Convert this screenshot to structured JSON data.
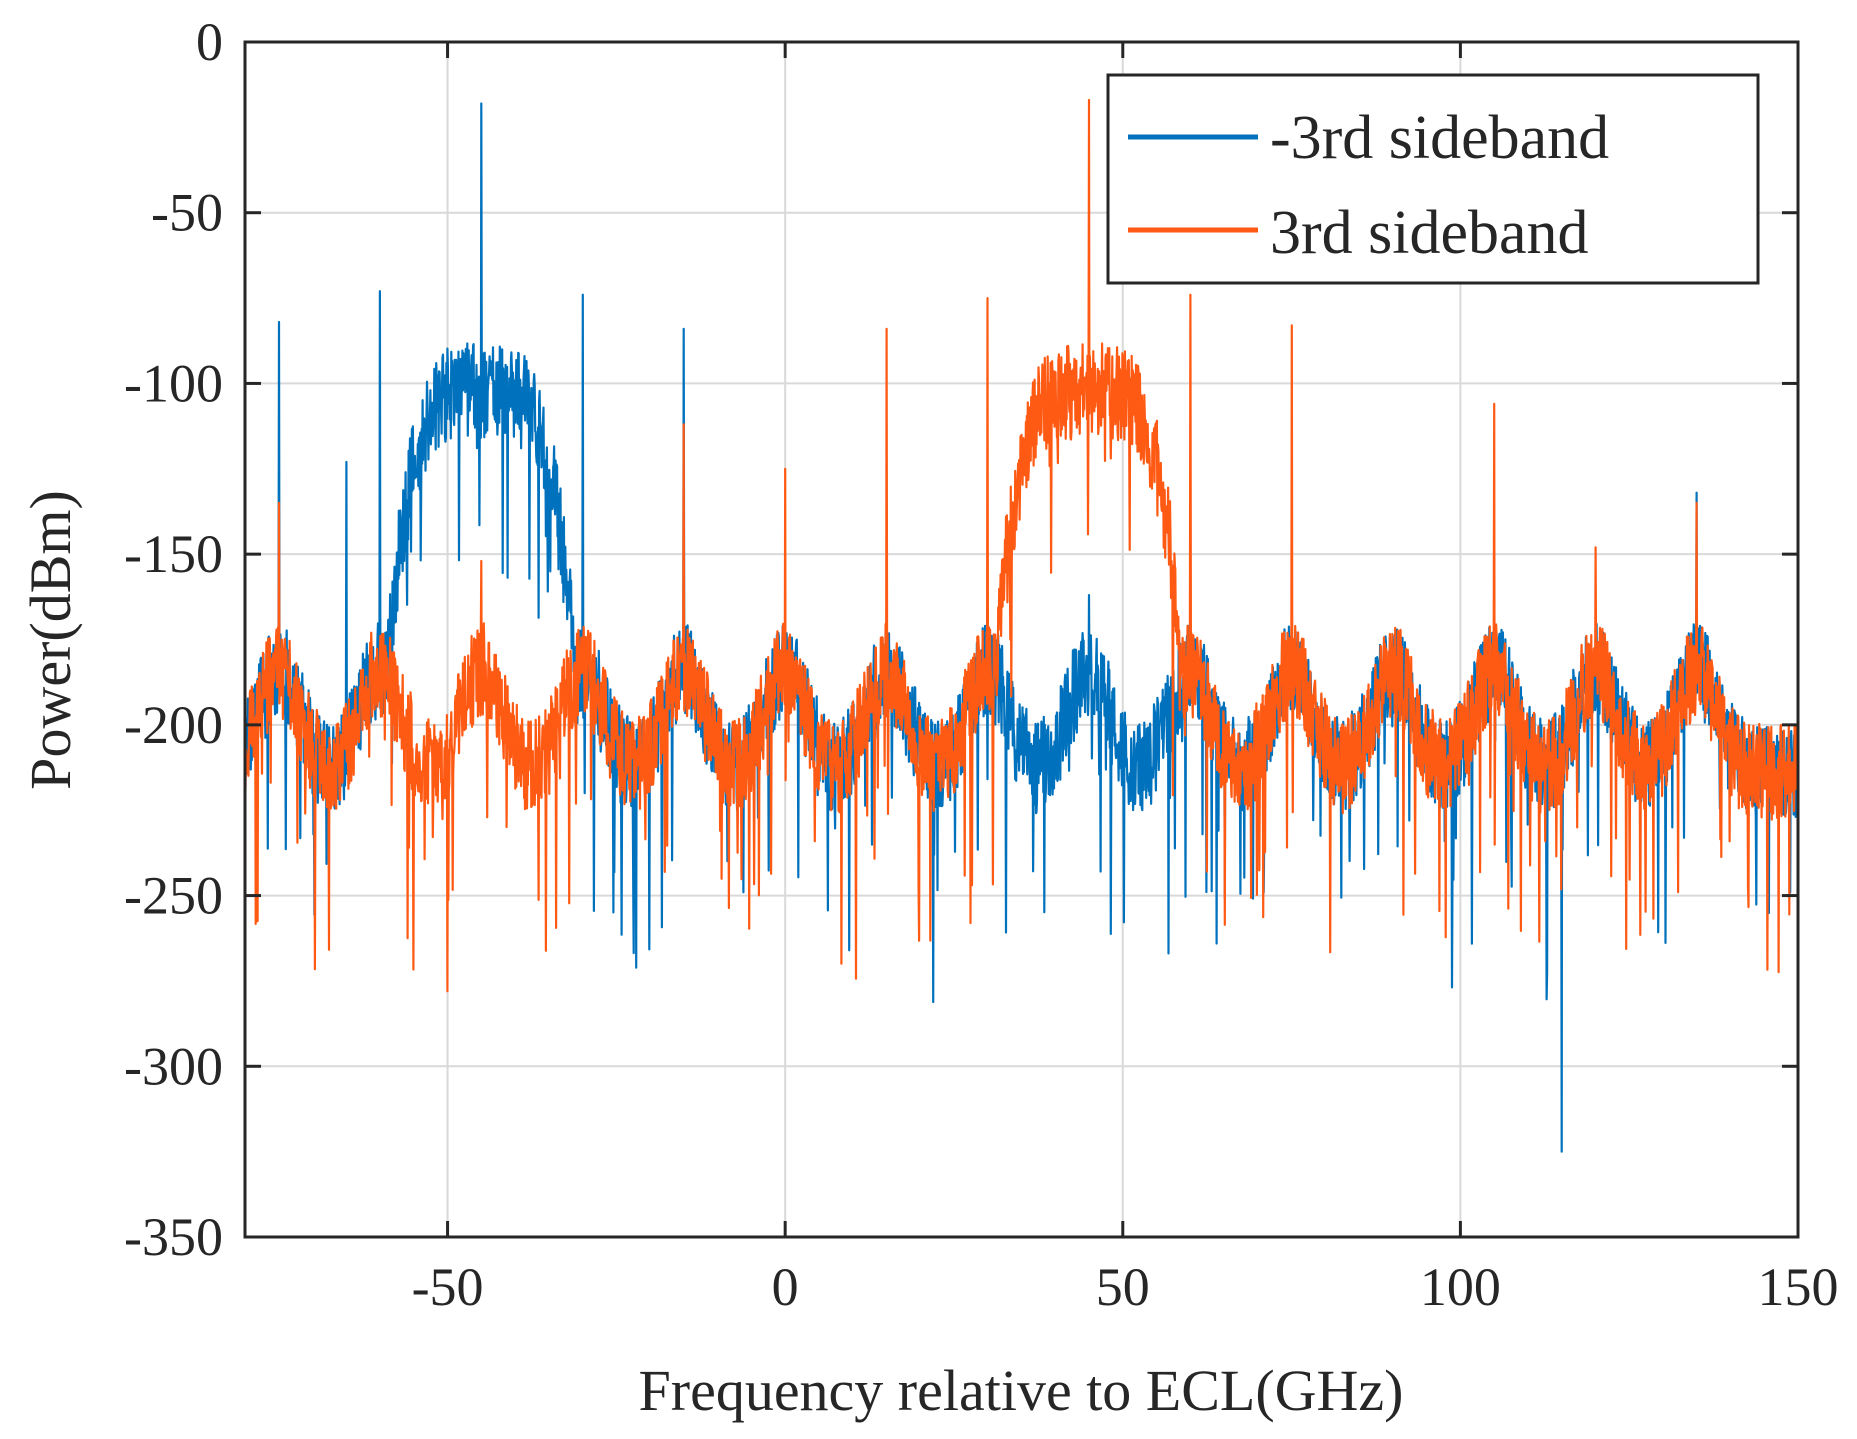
{
  "chart_data": {
    "type": "line",
    "title": "",
    "xlabel": "Frequency relative to ECL(GHz)",
    "ylabel": "Power(dBm)",
    "xlim": [
      -80,
      150
    ],
    "ylim": [
      -350,
      0
    ],
    "xticks": [
      -50,
      0,
      50,
      100,
      150
    ],
    "yticks": [
      0,
      -50,
      -100,
      -150,
      -200,
      -250,
      -300,
      -350
    ],
    "grid": true,
    "legend_position": "top-right",
    "colors": {
      "series_a": "#0072BD",
      "series_b": "#FF5A14",
      "grid": "#d9d9d9",
      "axis": "#262626"
    },
    "series": [
      {
        "name": "-3rd sideband",
        "center_GHz": -45,
        "band_GHz": [
          -60,
          -30
        ],
        "band_level_dBm": -100,
        "floor_dBm": -200,
        "spikes": [
          {
            "x": -45,
            "y": -18
          },
          {
            "x": -75,
            "y": -82
          },
          {
            "x": -60,
            "y": -73
          },
          {
            "x": -30,
            "y": -74
          },
          {
            "x": -15,
            "y": -84
          },
          {
            "x": -65,
            "y": -123
          },
          {
            "x": 15,
            "y": -165
          },
          {
            "x": 45,
            "y": -162
          },
          {
            "x": 75,
            "y": -170
          },
          {
            "x": 105,
            "y": -175
          },
          {
            "x": 135,
            "y": -132
          },
          {
            "x": 115,
            "y": -325
          }
        ]
      },
      {
        "name": "3rd sideband",
        "center_GHz": 45,
        "band_GHz": [
          30,
          60
        ],
        "band_level_dBm": -100,
        "floor_dBm": -200,
        "spikes": [
          {
            "x": 45,
            "y": -17
          },
          {
            "x": 15,
            "y": -84
          },
          {
            "x": 30,
            "y": -75
          },
          {
            "x": 60,
            "y": -74
          },
          {
            "x": 75,
            "y": -83
          },
          {
            "x": -15,
            "y": -112
          },
          {
            "x": -75,
            "y": -135
          },
          {
            "x": -45,
            "y": -152
          },
          {
            "x": 0,
            "y": -125
          },
          {
            "x": 105,
            "y": -106
          },
          {
            "x": 135,
            "y": -135
          },
          {
            "x": 120,
            "y": -148
          },
          {
            "x": -50,
            "y": -278
          }
        ]
      }
    ]
  }
}
